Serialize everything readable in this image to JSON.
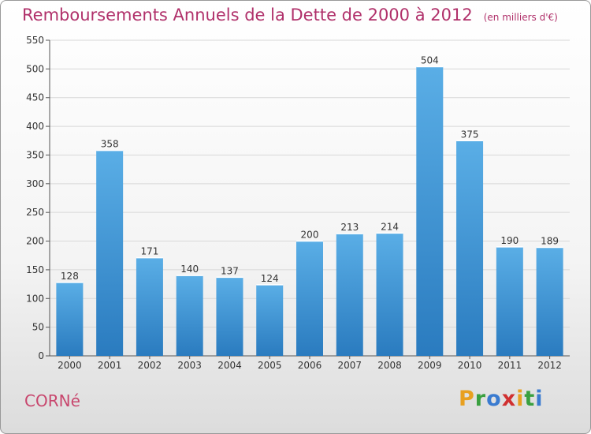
{
  "header": {
    "title": "Remboursements Annuels de la Dette de 2000 à 2012",
    "unit": "(en milliers d'€)"
  },
  "footer": {
    "commune": "CORNé",
    "logo_text": "Proxiti"
  },
  "colors": {
    "title": "#b0306a",
    "bar_top": "#5aaee6",
    "bar_bottom": "#2a7bbf"
  },
  "chart_data": {
    "type": "bar",
    "title": "Remboursements Annuels de la Dette de 2000 à 2012",
    "categories": [
      "2000",
      "2001",
      "2002",
      "2003",
      "2004",
      "2005",
      "2006",
      "2007",
      "2008",
      "2009",
      "2010",
      "2011",
      "2012"
    ],
    "values": [
      128,
      358,
      171,
      140,
      137,
      124,
      200,
      213,
      214,
      504,
      375,
      190,
      189
    ],
    "ylim": [
      0,
      550
    ],
    "yticks": [
      0,
      50,
      100,
      150,
      200,
      250,
      300,
      350,
      400,
      450,
      500,
      550
    ],
    "grid": true
  }
}
